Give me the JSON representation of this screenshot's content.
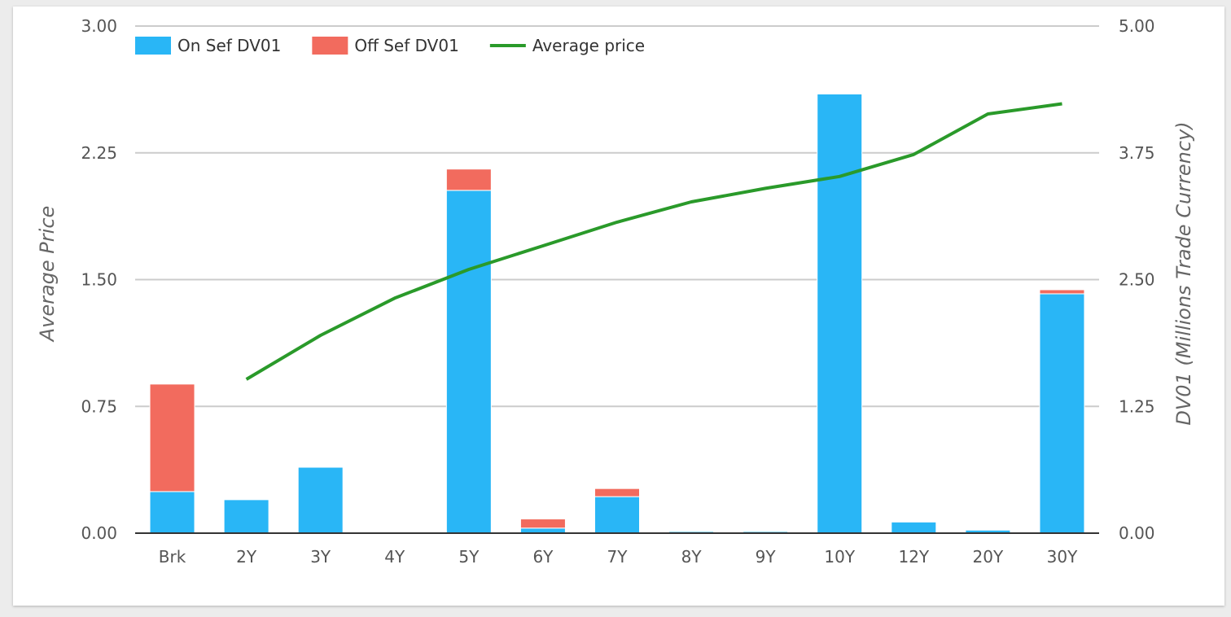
{
  "chart_data": {
    "type": "bar",
    "title": "",
    "categories": [
      "Brk",
      "2Y",
      "3Y",
      "4Y",
      "5Y",
      "6Y",
      "7Y",
      "8Y",
      "9Y",
      "10Y",
      "12Y",
      "20Y",
      "30Y"
    ],
    "series": [
      {
        "name": "On Sef DV01",
        "type": "bar",
        "axis": "right",
        "stack": "dv01",
        "color": "#29b6f6",
        "values": [
          0.41,
          0.33,
          0.65,
          0.0,
          3.38,
          0.05,
          0.36,
          0.01,
          0.01,
          4.33,
          0.11,
          0.03,
          2.36
        ]
      },
      {
        "name": "Off Sef DV01",
        "type": "bar",
        "axis": "right",
        "stack": "dv01",
        "color": "#f26b5e",
        "values": [
          1.06,
          0.0,
          0.0,
          0.0,
          0.21,
          0.09,
          0.08,
          0.0,
          0.0,
          0.0,
          0.0,
          0.0,
          0.04
        ]
      },
      {
        "name": "Average price",
        "type": "line",
        "axis": "left",
        "color": "#2a9a2a",
        "values": [
          null,
          0.91,
          1.17,
          1.39,
          1.56,
          1.7,
          1.84,
          1.96,
          2.04,
          2.11,
          2.24,
          2.48,
          2.54
        ]
      }
    ],
    "y_left": {
      "label": "Average Price",
      "lim": [
        0,
        3
      ],
      "ticks": [
        "0.00",
        "0.75",
        "1.50",
        "2.25",
        "3.00"
      ]
    },
    "y_right": {
      "label": "DV01 (Millions Trade Currency)",
      "lim": [
        0,
        5
      ],
      "ticks": [
        "0.00",
        "1.25",
        "2.50",
        "3.75",
        "5.00"
      ]
    },
    "grid": true,
    "legend_position": "top-left"
  }
}
